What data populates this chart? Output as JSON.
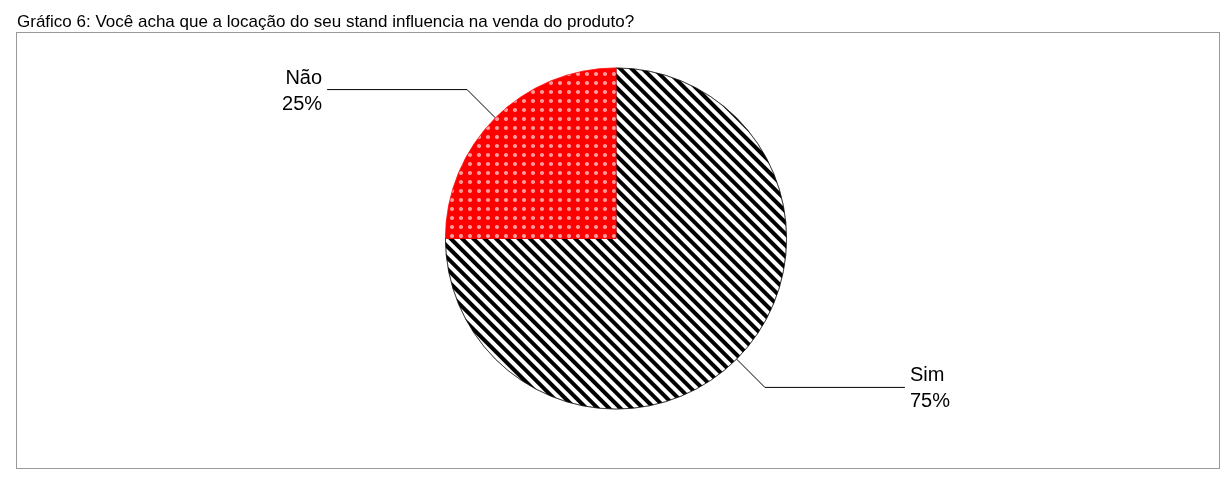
{
  "chart_data": {
    "type": "pie",
    "title": "Gráfico 6: Você acha que a locação do seu stand influencia na venda do produto?",
    "categories": [
      "Sim",
      "Não"
    ],
    "values": [
      75,
      25
    ],
    "colors": [
      "#000000",
      "#ff0000"
    ],
    "value_labels": [
      "75%",
      "25%"
    ],
    "legend": false
  }
}
